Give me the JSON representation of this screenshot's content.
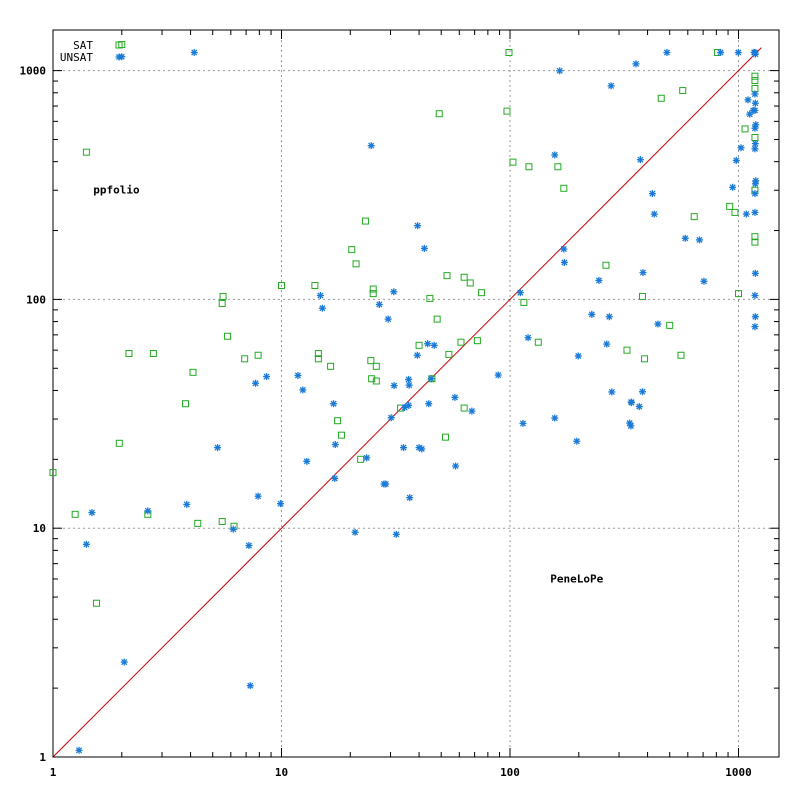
{
  "chart_data": {
    "type": "scatter",
    "x_scale": "log",
    "y_scale": "log",
    "xlim": [
      1,
      1200
    ],
    "ylim": [
      1,
      1500
    ],
    "x_ticks": [
      1,
      10,
      100,
      1000
    ],
    "y_ticks": [
      1,
      10,
      100,
      1000
    ],
    "x_tick_labels": [
      "1",
      "10",
      "100",
      "1000"
    ],
    "y_tick_labels": [
      "1",
      "10",
      "100",
      "1000"
    ],
    "grid": true,
    "diagonal": true,
    "legend_position": "top-left",
    "annotations": [
      {
        "text": "ppfolio",
        "x": 1.5,
        "y": 290
      },
      {
        "text": "PeneLoPe",
        "x": 150,
        "y": 5.8
      }
    ],
    "series": [
      {
        "name": "SAT",
        "marker": "square",
        "color": "#22aa22",
        "points": [
          [
            2,
            1300
          ],
          [
            1.4,
            440
          ],
          [
            1,
            17.5
          ],
          [
            1.25,
            11.5
          ],
          [
            1.55,
            4.7
          ],
          [
            1.95,
            23.5
          ],
          [
            2.15,
            58
          ],
          [
            2.6,
            11.5
          ],
          [
            2.75,
            58
          ],
          [
            3.8,
            35
          ],
          [
            4.1,
            48
          ],
          [
            4.3,
            10.5
          ],
          [
            5.5,
            96
          ],
          [
            5.55,
            103
          ],
          [
            5.5,
            10.7
          ],
          [
            5.8,
            69
          ],
          [
            6.2,
            10.2
          ],
          [
            6.9,
            55
          ],
          [
            7.9,
            57
          ],
          [
            10,
            115
          ],
          [
            14,
            115
          ],
          [
            14.5,
            58
          ],
          [
            14.5,
            55
          ],
          [
            16.4,
            51
          ],
          [
            17.6,
            29.5
          ],
          [
            18.3,
            25.5
          ],
          [
            20.3,
            165
          ],
          [
            21.2,
            143
          ],
          [
            22.2,
            20
          ],
          [
            23.3,
            220
          ],
          [
            24.6,
            54
          ],
          [
            24.8,
            45
          ],
          [
            25.2,
            111
          ],
          [
            25.2,
            106
          ],
          [
            26,
            51
          ],
          [
            26,
            44
          ],
          [
            33.2,
            33.5
          ],
          [
            40,
            63
          ],
          [
            44.6,
            101
          ],
          [
            45.5,
            45
          ],
          [
            48,
            82
          ],
          [
            49,
            648
          ],
          [
            52.2,
            25
          ],
          [
            53,
            127
          ],
          [
            54,
            57.5
          ],
          [
            61,
            65
          ],
          [
            63,
            125
          ],
          [
            63,
            33.5
          ],
          [
            67,
            118
          ],
          [
            72,
            66
          ],
          [
            75,
            107
          ],
          [
            97,
            665
          ],
          [
            99,
            1200
          ],
          [
            103,
            398
          ],
          [
            115,
            97
          ],
          [
            121,
            380
          ],
          [
            133,
            65
          ],
          [
            162,
            380
          ],
          [
            172,
            306
          ],
          [
            263,
            141
          ],
          [
            325,
            60
          ],
          [
            380,
            103
          ],
          [
            388,
            55
          ],
          [
            459,
            757
          ],
          [
            500,
            77
          ],
          [
            560,
            57
          ],
          [
            570,
            818
          ],
          [
            640,
            230
          ],
          [
            810,
            1200
          ],
          [
            915,
            255
          ],
          [
            965,
            240
          ],
          [
            1000,
            106
          ],
          [
            1068,
            556
          ],
          [
            1180,
            945
          ],
          [
            1180,
            905
          ],
          [
            1180,
            835
          ],
          [
            1180,
            510
          ],
          [
            1180,
            300
          ],
          [
            1180,
            188
          ],
          [
            1180,
            178
          ]
        ]
      },
      {
        "name": "UNSAT",
        "marker": "star",
        "color": "#1a7ad6",
        "points": [
          [
            2,
            1150
          ],
          [
            4.15,
            1200
          ],
          [
            1.4,
            8.5
          ],
          [
            1.48,
            11.7
          ],
          [
            1.3,
            1.07
          ],
          [
            2.05,
            2.6
          ],
          [
            2.6,
            11.9
          ],
          [
            3.85,
            12.7
          ],
          [
            5.25,
            22.5
          ],
          [
            6.15,
            9.9
          ],
          [
            7.2,
            8.4
          ],
          [
            7.3,
            2.05
          ],
          [
            7.7,
            43
          ],
          [
            7.9,
            13.8
          ],
          [
            8.6,
            46
          ],
          [
            9.9,
            12.8
          ],
          [
            11.8,
            46.5
          ],
          [
            12.4,
            40.2
          ],
          [
            12.9,
            19.6
          ],
          [
            14.8,
            104
          ],
          [
            15.1,
            91.5
          ],
          [
            16.9,
            35
          ],
          [
            17.2,
            23.2
          ],
          [
            17.1,
            16.5
          ],
          [
            21,
            9.6
          ],
          [
            23.6,
            20.3
          ],
          [
            24.7,
            470
          ],
          [
            26.8,
            95
          ],
          [
            28.1,
            15.6
          ],
          [
            28.6,
            15.6
          ],
          [
            29.3,
            82
          ],
          [
            30.2,
            30.4
          ],
          [
            31,
            108
          ],
          [
            31.1,
            42
          ],
          [
            31.8,
            9.4
          ],
          [
            34.2,
            22.5
          ],
          [
            34.6,
            33.7
          ],
          [
            36,
            44.7
          ],
          [
            36,
            34.4
          ],
          [
            36.2,
            42.2
          ],
          [
            36.4,
            13.6
          ],
          [
            39.3,
            57
          ],
          [
            39.4,
            210
          ],
          [
            40,
            22.5
          ],
          [
            41.1,
            22.2
          ],
          [
            42.2,
            167
          ],
          [
            43.6,
            64
          ],
          [
            44.1,
            35
          ],
          [
            45.2,
            45
          ],
          [
            46.6,
            63
          ],
          [
            57.4,
            37.3
          ],
          [
            57.8,
            18.7
          ],
          [
            68.1,
            32.5
          ],
          [
            88.8,
            46.7
          ],
          [
            111,
            107
          ],
          [
            114,
            28.7
          ],
          [
            120,
            68
          ],
          [
            157,
            30.3
          ],
          [
            157,
            428
          ],
          [
            165,
            998
          ],
          [
            172,
            166
          ],
          [
            173,
            145
          ],
          [
            196,
            24
          ],
          [
            199,
            56.6
          ],
          [
            228,
            86
          ],
          [
            245,
            121
          ],
          [
            265,
            63.8
          ],
          [
            272,
            84
          ],
          [
            277,
            858
          ],
          [
            279,
            39.4
          ],
          [
            334,
            28.8
          ],
          [
            338,
            28
          ],
          [
            339,
            35.6
          ],
          [
            340,
            35.4
          ],
          [
            356,
            1070
          ],
          [
            368,
            34
          ],
          [
            372,
            408
          ],
          [
            380,
            39.5
          ],
          [
            382,
            131
          ],
          [
            420,
            290
          ],
          [
            428,
            236
          ],
          [
            444,
            78
          ],
          [
            486,
            1200
          ],
          [
            585,
            185
          ],
          [
            675,
            182
          ],
          [
            706,
            120
          ],
          [
            835,
            1200
          ],
          [
            943,
            309
          ],
          [
            978,
            405
          ],
          [
            998,
            1200
          ],
          [
            1026,
            460
          ],
          [
            1082,
            236
          ],
          [
            1100,
            745
          ],
          [
            1120,
            645
          ],
          [
            1160,
            670
          ],
          [
            1170,
            1200
          ],
          [
            1180,
            1200
          ],
          [
            1185,
            1180
          ],
          [
            1180,
            790
          ],
          [
            1185,
            720
          ],
          [
            1180,
            670
          ],
          [
            1190,
            580
          ],
          [
            1180,
            560
          ],
          [
            1185,
            480
          ],
          [
            1180,
            455
          ],
          [
            1190,
            330
          ],
          [
            1185,
            320
          ],
          [
            1180,
            290
          ],
          [
            1180,
            240
          ],
          [
            1185,
            130
          ],
          [
            1180,
            104
          ],
          [
            1185,
            84
          ],
          [
            1180,
            76
          ]
        ]
      }
    ]
  }
}
